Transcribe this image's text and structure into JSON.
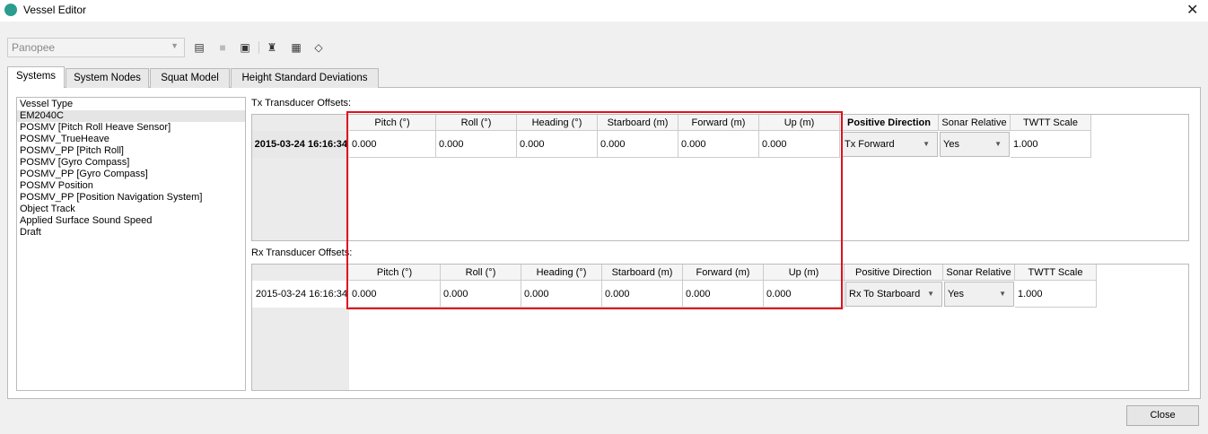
{
  "window": {
    "title": "Vessel Editor",
    "close_glyph": "✕"
  },
  "toolbar": {
    "vessel_select": "Panopee",
    "icons": [
      "new-config-icon",
      "save-icon",
      "save-as-icon",
      "sensor-icon",
      "add-table-icon",
      "vessel-shape-icon"
    ]
  },
  "tabs": [
    {
      "label": "Systems",
      "active": true
    },
    {
      "label": "System Nodes"
    },
    {
      "label": "Squat Model"
    },
    {
      "label": "Height Standard Deviations"
    }
  ],
  "sidebar": {
    "items": [
      "Vessel Type",
      "EM2040C",
      "POSMV [Pitch Roll Heave Sensor]",
      "POSMV_TrueHeave",
      "POSMV_PP [Pitch Roll]",
      "POSMV [Gyro Compass]",
      "POSMV_PP [Gyro Compass]",
      "POSMV Position",
      "POSMV_PP  [Position Navigation System]",
      "Object Track",
      "Applied Surface Sound Speed",
      "Draft"
    ],
    "selected": "EM2040C"
  },
  "tx": {
    "label": "Tx Transducer Offsets:",
    "headers": [
      "Pitch (°)",
      "Roll (°)",
      "Heading (°)",
      "Starboard (m)",
      "Forward (m)",
      "Up (m)",
      "Positive Direction",
      "Sonar Relative",
      "TWTT Scale"
    ],
    "row": {
      "timestamp": "2015-03-24 16:16:34",
      "values": [
        "0.000",
        "0.000",
        "0.000",
        "0.000",
        "0.000",
        "0.000"
      ],
      "positive_direction": "Tx Forward",
      "sonar_relative": "Yes",
      "twtt_scale": "1.000"
    }
  },
  "rx": {
    "label": "Rx Transducer Offsets:",
    "headers": [
      "Pitch (°)",
      "Roll (°)",
      "Heading (°)",
      "Starboard (m)",
      "Forward (m)",
      "Up (m)",
      "Positive Direction",
      "Sonar Relative",
      "TWTT Scale"
    ],
    "row": {
      "timestamp": "2015-03-24 16:16:34",
      "values": [
        "0.000",
        "0.000",
        "0.000",
        "0.000",
        "0.000",
        "0.000"
      ],
      "positive_direction": "Rx To Starboard",
      "sonar_relative": "Yes",
      "twtt_scale": "1.000"
    }
  },
  "highlight_color": "#e0101e",
  "footer": {
    "close_label": "Close"
  }
}
